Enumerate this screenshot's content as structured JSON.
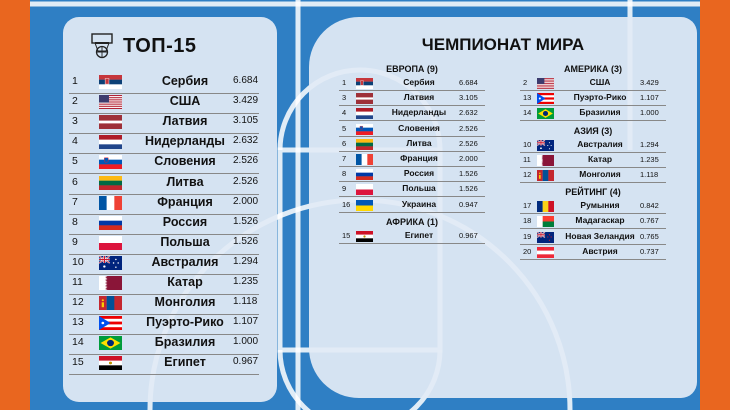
{
  "left": {
    "title": "ТОП-15",
    "rows": [
      {
        "rank": "1",
        "country": "Сербия",
        "score": "6.684",
        "flag": "serbia"
      },
      {
        "rank": "2",
        "country": "США",
        "score": "3.429",
        "flag": "usa"
      },
      {
        "rank": "3",
        "country": "Латвия",
        "score": "3.105",
        "flag": "latvia"
      },
      {
        "rank": "4",
        "country": "Нидерланды",
        "score": "2.632",
        "flag": "netherlands"
      },
      {
        "rank": "5",
        "country": "Словения",
        "score": "2.526",
        "flag": "slovenia"
      },
      {
        "rank": "6",
        "country": "Литва",
        "score": "2.526",
        "flag": "lithuania"
      },
      {
        "rank": "7",
        "country": "Франция",
        "score": "2.000",
        "flag": "france"
      },
      {
        "rank": "8",
        "country": "Россия",
        "score": "1.526",
        "flag": "russia"
      },
      {
        "rank": "9",
        "country": "Польша",
        "score": "1.526",
        "flag": "poland"
      },
      {
        "rank": "10",
        "country": "Австралия",
        "score": "1.294",
        "flag": "australia"
      },
      {
        "rank": "11",
        "country": "Катар",
        "score": "1.235",
        "flag": "qatar"
      },
      {
        "rank": "12",
        "country": "Монголия",
        "score": "1.118",
        "flag": "mongolia"
      },
      {
        "rank": "13",
        "country": "Пуэрто-Рико",
        "score": "1.107",
        "flag": "puerto-rico"
      },
      {
        "rank": "14",
        "country": "Бразилия",
        "score": "1.000",
        "flag": "brazil"
      },
      {
        "rank": "15",
        "country": "Египет",
        "score": "0.967",
        "flag": "egypt"
      }
    ]
  },
  "right": {
    "title": "ЧЕМПИОНАТ МИРА",
    "groups": [
      {
        "title": "ЕВРОПА (9)",
        "rows": [
          {
            "rank": "1",
            "country": "Сербия",
            "score": "6.684",
            "flag": "serbia"
          },
          {
            "rank": "3",
            "country": "Латвия",
            "score": "3.105",
            "flag": "latvia"
          },
          {
            "rank": "4",
            "country": "Нидерланды",
            "score": "2.632",
            "flag": "netherlands"
          },
          {
            "rank": "5",
            "country": "Словения",
            "score": "2.526",
            "flag": "slovenia"
          },
          {
            "rank": "6",
            "country": "Литва",
            "score": "2.526",
            "flag": "lithuania"
          },
          {
            "rank": "7",
            "country": "Франция",
            "score": "2.000",
            "flag": "france"
          },
          {
            "rank": "8",
            "country": "Россия",
            "score": "1.526",
            "flag": "russia"
          },
          {
            "rank": "9",
            "country": "Польша",
            "score": "1.526",
            "flag": "poland"
          },
          {
            "rank": "16",
            "country": "Украина",
            "score": "0.947",
            "flag": "ukraine"
          }
        ]
      },
      {
        "title": "АФРИКА (1)",
        "rows": [
          {
            "rank": "15",
            "country": "Египет",
            "score": "0.967",
            "flag": "egypt"
          }
        ]
      },
      {
        "title": "АМЕРИКА (3)",
        "rows": [
          {
            "rank": "2",
            "country": "США",
            "score": "3.429",
            "flag": "usa"
          },
          {
            "rank": "13",
            "country": "Пуэрто-Рико",
            "score": "1.107",
            "flag": "puerto-rico"
          },
          {
            "rank": "14",
            "country": "Бразилия",
            "score": "1.000",
            "flag": "brazil"
          }
        ]
      },
      {
        "title": "АЗИЯ (3)",
        "rows": [
          {
            "rank": "10",
            "country": "Австралия",
            "score": "1.294",
            "flag": "australia"
          },
          {
            "rank": "11",
            "country": "Катар",
            "score": "1.235",
            "flag": "qatar"
          },
          {
            "rank": "12",
            "country": "Монголия",
            "score": "1.118",
            "flag": "mongolia"
          }
        ]
      },
      {
        "title": "РЕЙТИНГ (4)",
        "rows": [
          {
            "rank": "17",
            "country": "Румыния",
            "score": "0.842",
            "flag": "romania"
          },
          {
            "rank": "18",
            "country": "Мадагаскар",
            "score": "0.767",
            "flag": "madagascar"
          },
          {
            "rank": "19",
            "country": "Новая Зеландия",
            "score": "0.765",
            "flag": "new-zealand"
          },
          {
            "rank": "20",
            "country": "Австрия",
            "score": "0.737",
            "flag": "austria"
          }
        ]
      }
    ]
  },
  "colors": {
    "court": "#2f7fc4",
    "border": "#e9661f",
    "panel": "#e2ebf5"
  }
}
